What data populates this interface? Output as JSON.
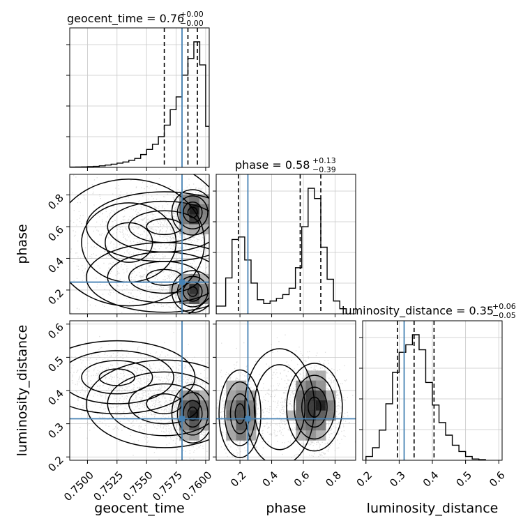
{
  "chart_data": {
    "type": "corner",
    "parameters": [
      "geocent_time",
      "phase",
      "luminosity_distance"
    ],
    "colors": {
      "truth": "#4682b4",
      "hist": "#000000",
      "grid": "#c8c8c8",
      "scatter": "#9a9a9a"
    },
    "truth": {
      "geocent_time": 0.758,
      "phase": 0.25,
      "luminosity_distance": 0.315
    },
    "ranges": {
      "geocent_time": [
        0.7485,
        0.7603
      ],
      "phase": [
        0.05,
        0.93
      ],
      "luminosity_distance": [
        0.19,
        0.61
      ]
    },
    "ticks": {
      "geocent_time": [
        "0.7500",
        "0.7525",
        "0.7550",
        "0.7575",
        "0.7600"
      ],
      "phase": [
        "0.2",
        "0.4",
        "0.6",
        "0.8"
      ],
      "luminosity_distance": [
        "0.2",
        "0.3",
        "0.4",
        "0.5",
        "0.6"
      ]
    },
    "titles": {
      "geocent_time": {
        "main": "geocent_time = 0.76",
        "plus": "+0.00",
        "minus": "−0.00"
      },
      "phase": {
        "main": "phase = 0.58",
        "plus": "+0.13",
        "minus": "−0.39"
      },
      "luminosity_distance": {
        "main": "luminosity_distance = 0.35",
        "plus": "+0.06",
        "minus": "−0.05"
      }
    },
    "quantiles": {
      "geocent_time": [
        0.7565,
        0.7585,
        0.7593
      ],
      "phase": [
        0.19,
        0.58,
        0.71
      ],
      "luminosity_distance": [
        0.295,
        0.345,
        0.405
      ]
    },
    "histograms": {
      "geocent_time": {
        "edges": [
          0.7485,
          0.749,
          0.7495,
          0.75,
          0.7505,
          0.751,
          0.7515,
          0.752,
          0.7525,
          0.753,
          0.7535,
          0.754,
          0.7545,
          0.755,
          0.7555,
          0.756,
          0.7565,
          0.757,
          0.7575,
          0.758,
          0.7585,
          0.759,
          0.7595,
          0.76,
          0.7603
        ],
        "counts": [
          0.002,
          0.003,
          0.004,
          0.006,
          0.008,
          0.012,
          0.018,
          0.025,
          0.033,
          0.042,
          0.055,
          0.07,
          0.1,
          0.14,
          0.18,
          0.24,
          0.33,
          0.45,
          0.55,
          0.72,
          0.85,
          0.98,
          0.8,
          0.32
        ]
      },
      "phase": {
        "edges": [
          0.05,
          0.11,
          0.15,
          0.19,
          0.23,
          0.27,
          0.31,
          0.35,
          0.39,
          0.43,
          0.47,
          0.51,
          0.55,
          0.59,
          0.63,
          0.67,
          0.71,
          0.75,
          0.79,
          0.83,
          0.87
        ],
        "counts": [
          0.06,
          0.28,
          0.58,
          0.6,
          0.42,
          0.24,
          0.11,
          0.08,
          0.1,
          0.12,
          0.15,
          0.2,
          0.36,
          0.68,
          0.98,
          0.9,
          0.52,
          0.27,
          0.1,
          0.04
        ]
      },
      "luminosity_distance": {
        "edges": [
          0.2,
          0.22,
          0.24,
          0.26,
          0.28,
          0.3,
          0.32,
          0.34,
          0.36,
          0.38,
          0.4,
          0.42,
          0.44,
          0.46,
          0.48,
          0.5,
          0.52,
          0.54,
          0.56
        ],
        "counts": [
          0.03,
          0.1,
          0.24,
          0.45,
          0.7,
          0.86,
          0.92,
          1.0,
          0.88,
          0.62,
          0.44,
          0.3,
          0.2,
          0.12,
          0.07,
          0.03,
          0.01,
          0.005
        ]
      }
    },
    "blobs": {
      "phase_vs_geocent_time": [
        {
          "x": 0.7589,
          "y": 0.69,
          "sx": 0.0008,
          "sy": 0.065,
          "n": 1300
        },
        {
          "x": 0.7589,
          "y": 0.19,
          "sx": 0.0008,
          "sy": 0.06,
          "n": 1100
        },
        {
          "x": 0.7565,
          "y": 0.6,
          "sx": 0.003,
          "sy": 0.1,
          "n": 650
        },
        {
          "x": 0.7565,
          "y": 0.28,
          "sx": 0.003,
          "sy": 0.1,
          "n": 500
        },
        {
          "x": 0.7535,
          "y": 0.5,
          "sx": 0.004,
          "sy": 0.25,
          "n": 450
        }
      ],
      "luminosity_distance_vs_geocent_time": [
        {
          "x": 0.7589,
          "y": 0.33,
          "sx": 0.0008,
          "sy": 0.04,
          "n": 1800
        },
        {
          "x": 0.7565,
          "y": 0.36,
          "sx": 0.003,
          "sy": 0.06,
          "n": 900
        },
        {
          "x": 0.7525,
          "y": 0.44,
          "sx": 0.003,
          "sy": 0.05,
          "n": 550
        }
      ],
      "luminosity_distance_vs_phase": [
        {
          "x": 0.2,
          "y": 0.33,
          "sx": 0.06,
          "sy": 0.06,
          "n": 900
        },
        {
          "x": 0.67,
          "y": 0.35,
          "sx": 0.08,
          "sy": 0.06,
          "n": 1500
        },
        {
          "x": 0.45,
          "y": 0.35,
          "sx": 0.1,
          "sy": 0.08,
          "n": 300
        }
      ]
    }
  }
}
